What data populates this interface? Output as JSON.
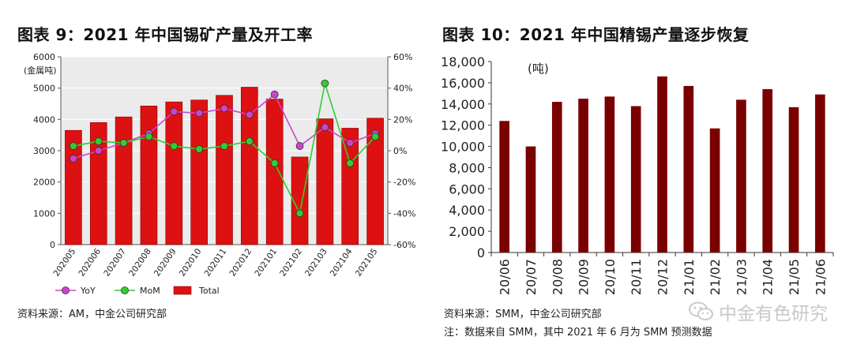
{
  "left": {
    "title": "图表 9：2021 年中国锡矿产量及开工率",
    "source": "资料来源：AM，中金公司研究部"
  },
  "right": {
    "title": "图表 10：2021 年中国精锡产量逐步恢复",
    "source": "资料来源：SMM，中金公司研究部",
    "note": "注：数据来自 SMM，其中 2021 年 6 月为 SMM 预测数据"
  },
  "watermark": {
    "text": "中金有色研究",
    "icon": "wechat-icon"
  },
  "colors": {
    "bar_red": "#dd1111",
    "bar_dark": "#7a0000",
    "yoy": "#cc44cc",
    "mom": "#33cc33",
    "plot_bg": "#ebebeb"
  },
  "chart_data": [
    {
      "type": "bar",
      "combo": "bar+line (dual axis)",
      "ylabel": "(金属吨)",
      "categories": [
        "202005",
        "202006",
        "202007",
        "202008",
        "202009",
        "202010",
        "202011",
        "202012",
        "202101",
        "202102",
        "202103",
        "202104",
        "202105"
      ],
      "ylim": [
        0,
        6000
      ],
      "yticks": [
        "0",
        "1000",
        "2000",
        "3000",
        "4000",
        "5000",
        "6000"
      ],
      "y2lim": [
        -60,
        60
      ],
      "y2ticks": [
        "-60%",
        "-40%",
        "-20%",
        "0%",
        "20%",
        "40%",
        "60%"
      ],
      "grid": true,
      "legend_position": "bottom",
      "series": [
        {
          "name": "Total",
          "kind": "bar",
          "axis": "left",
          "values": [
            3650,
            3900,
            4080,
            4430,
            4560,
            4620,
            4770,
            5030,
            4650,
            2800,
            4020,
            3720,
            4040
          ]
        },
        {
          "name": "YoY",
          "kind": "line",
          "axis": "right",
          "values": [
            -5,
            0,
            5,
            11,
            25,
            24,
            27,
            23,
            36,
            3,
            15,
            5,
            11
          ]
        },
        {
          "name": "MoM",
          "kind": "line",
          "axis": "right",
          "values": [
            3,
            6,
            5,
            9,
            3,
            1,
            3,
            6,
            -8,
            -40,
            43,
            -8,
            9
          ]
        }
      ]
    },
    {
      "type": "bar",
      "ylabel": "(吨)",
      "categories": [
        "20/06",
        "20/07",
        "20/08",
        "20/09",
        "20/10",
        "20/11",
        "20/12",
        "21/01",
        "21/02",
        "21/03",
        "21/04",
        "21/05",
        "21/06"
      ],
      "ylim": [
        0,
        18000
      ],
      "yticks": [
        "0",
        "2,000",
        "4,000",
        "6,000",
        "8,000",
        "10,000",
        "12,000",
        "14,000",
        "16,000",
        "18,000"
      ],
      "grid": false,
      "series": [
        {
          "name": "",
          "values": [
            12400,
            10000,
            14200,
            14500,
            14700,
            13800,
            16600,
            15700,
            11700,
            14400,
            15400,
            13700,
            14900
          ]
        }
      ]
    }
  ]
}
